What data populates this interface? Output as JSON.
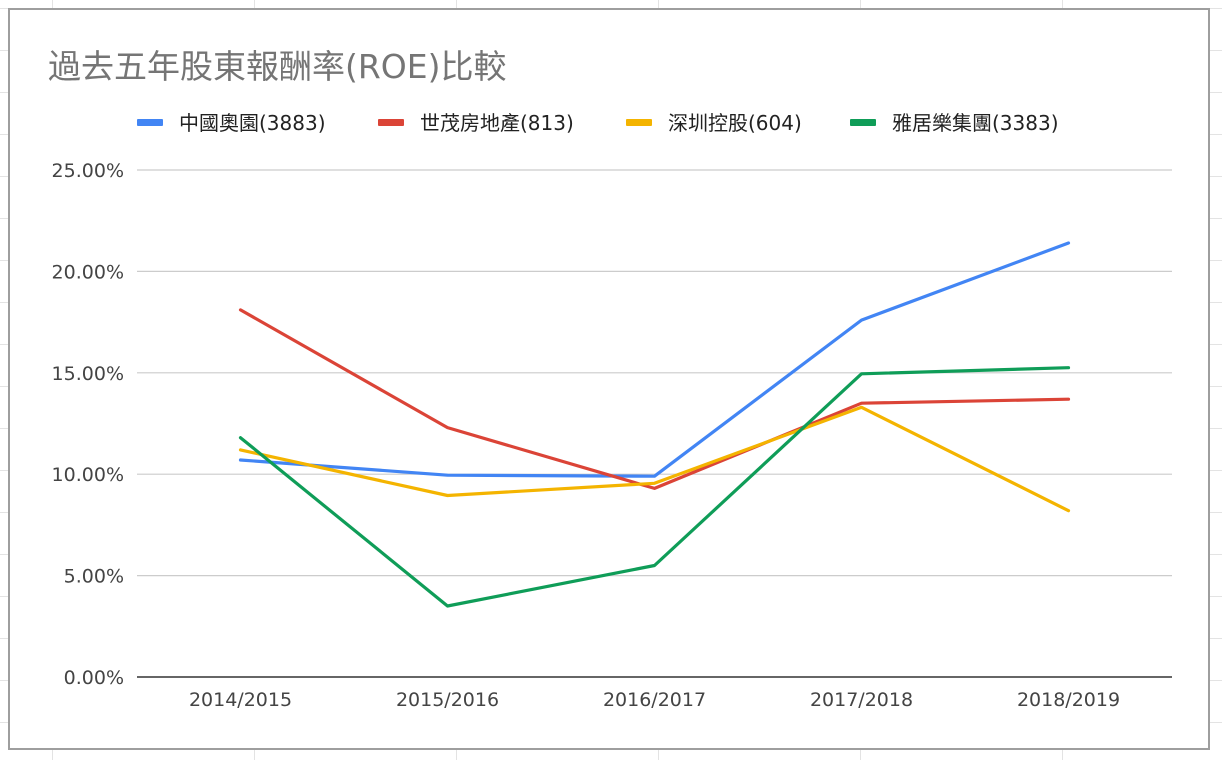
{
  "chart_data": {
    "type": "line",
    "title": "過去五年股東報酬率(ROE)比較",
    "xlabel": "",
    "ylabel": "",
    "categories": [
      "2014/2015",
      "2015/2016",
      "2016/2017",
      "2017/2018",
      "2018/2019"
    ],
    "ylim": [
      0,
      25
    ],
    "yticks": [
      0,
      5,
      10,
      15,
      20,
      25
    ],
    "ytick_labels": [
      "0.00%",
      "5.00%",
      "10.00%",
      "15.00%",
      "20.00%",
      "25.00%"
    ],
    "grid": true,
    "legend": "top",
    "series": [
      {
        "name": "中國奧園(3883)",
        "color": "#4285f4",
        "values": [
          10.7,
          9.95,
          9.9,
          17.6,
          21.4
        ]
      },
      {
        "name": "世茂房地產(813)",
        "color": "#db4437",
        "values": [
          18.1,
          12.3,
          9.3,
          13.5,
          13.7
        ]
      },
      {
        "name": "深圳控股(604)",
        "color": "#f4b400",
        "values": [
          11.2,
          8.95,
          9.55,
          13.3,
          8.2
        ]
      },
      {
        "name": "雅居樂集團(3383)",
        "color": "#0f9d58",
        "values": [
          11.8,
          3.5,
          5.5,
          14.95,
          15.25
        ]
      }
    ]
  }
}
